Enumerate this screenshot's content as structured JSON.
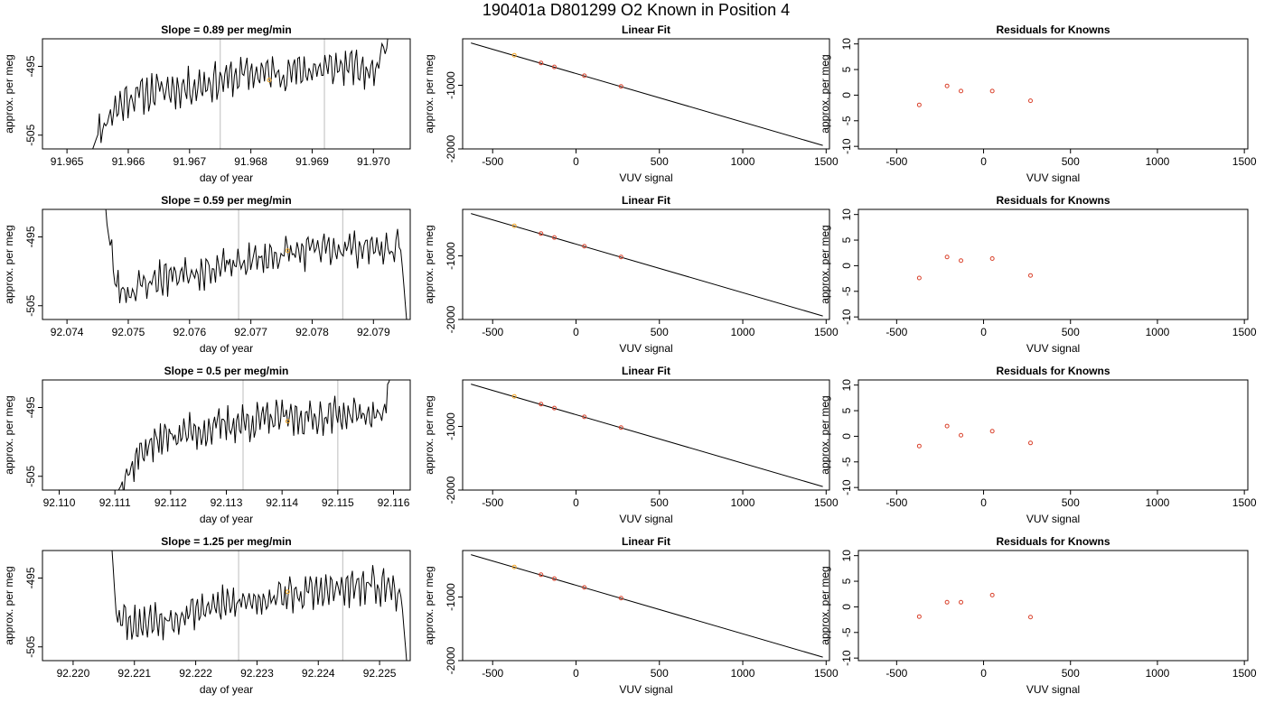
{
  "title": "190401a     D801299   O2 Known in Position  4",
  "colors": {
    "trace": "#000000",
    "marker": "#f5a623",
    "residual": "#d9412b",
    "vline": "#c8c8c8",
    "fitline": "#000000"
  },
  "chart_data": [
    {
      "type": "line",
      "row": 0,
      "col": 0,
      "title": "Slope =  0.89  per meg/min",
      "xlabel": "day of year",
      "ylabel": "approx. per meg",
      "xlim": [
        91.9646,
        91.9706
      ],
      "ylim": [
        -507,
        -491
      ],
      "xticks": [
        "91.965",
        "91.966",
        "91.967",
        "91.968",
        "91.969",
        "91.970"
      ],
      "yticks": [
        "-505",
        "-495"
      ],
      "vlines": [
        91.9675,
        91.9692
      ],
      "marker": {
        "x": 91.9683,
        "y": -497
      },
      "trace_seed": 11,
      "trace_points": [
        [
          91.9654,
          -507.5
        ],
        [
          91.9655,
          -505
        ],
        [
          91.9657,
          -502
        ],
        [
          91.966,
          -499.5
        ],
        [
          91.9665,
          -498.5
        ],
        [
          91.967,
          -498
        ],
        [
          91.9675,
          -497
        ],
        [
          91.968,
          -496
        ],
        [
          91.9685,
          -496
        ],
        [
          91.969,
          -495.5
        ],
        [
          91.9696,
          -495
        ],
        [
          91.97,
          -496
        ],
        [
          91.97025,
          -490
        ],
        [
          91.97032,
          -486
        ]
      ]
    },
    {
      "type": "scatter",
      "row": 0,
      "col": 1,
      "title": "Linear Fit",
      "xlabel": "VUV signal",
      "ylabel": "approx. per meg",
      "xlim": [
        -680,
        1520
      ],
      "ylim": [
        -2000,
        -270
      ],
      "xticks": [
        "-500",
        "0",
        "500",
        "1000",
        "1500"
      ],
      "yticks": [
        "-1000",
        "-2000"
      ],
      "fit_line": [
        [
          -630,
          -335
        ],
        [
          1480,
          -1945
        ]
      ],
      "points": [
        [
          -370,
          -528
        ],
        [
          -210,
          -650
        ],
        [
          -130,
          -712
        ],
        [
          50,
          -850
        ],
        [
          270,
          -1018
        ]
      ],
      "highlight_index": 0
    },
    {
      "type": "scatter",
      "row": 0,
      "col": 2,
      "title": "Residuals for Knowns",
      "xlabel": "VUV signal",
      "ylabel": "approx. per meg",
      "xlim": [
        -720,
        1520
      ],
      "ylim": [
        -10.5,
        11
      ],
      "xticks": [
        "-500",
        "0",
        "500",
        "1000",
        "1500"
      ],
      "yticks": [
        "-10",
        "-5",
        "0",
        "5",
        "10"
      ],
      "points": [
        [
          -370,
          -1.9
        ],
        [
          -210,
          1.8
        ],
        [
          -130,
          0.8
        ],
        [
          50,
          0.8
        ],
        [
          270,
          -1.1
        ]
      ]
    },
    {
      "type": "line",
      "row": 1,
      "col": 0,
      "title": "Slope =  0.59  per meg/min",
      "xlabel": "day of year",
      "ylabel": "approx. per meg",
      "xlim": [
        92.0736,
        92.0796
      ],
      "ylim": [
        -507,
        -491
      ],
      "xticks": [
        "92.074",
        "92.075",
        "92.076",
        "92.077",
        "92.078",
        "92.079"
      ],
      "yticks": [
        "-505",
        "-495"
      ],
      "vlines": [
        92.0768,
        92.0785
      ],
      "marker": {
        "x": 92.0776,
        "y": -497
      },
      "trace_seed": 23,
      "trace_points": [
        [
          92.0746,
          -487
        ],
        [
          92.07465,
          -493
        ],
        [
          92.0748,
          -502
        ],
        [
          92.075,
          -503
        ],
        [
          92.0755,
          -501
        ],
        [
          92.076,
          -500
        ],
        [
          92.0765,
          -499.5
        ],
        [
          92.077,
          -498.5
        ],
        [
          92.0775,
          -497.5
        ],
        [
          92.078,
          -497
        ],
        [
          92.0785,
          -496.5
        ],
        [
          92.079,
          -496.5
        ],
        [
          92.07945,
          -497
        ],
        [
          92.07955,
          -508
        ]
      ]
    },
    {
      "type": "scatter",
      "row": 1,
      "col": 1,
      "title": "Linear Fit",
      "xlabel": "VUV signal",
      "ylabel": "approx. per meg",
      "xlim": [
        -680,
        1520
      ],
      "ylim": [
        -2000,
        -270
      ],
      "xticks": [
        "-500",
        "0",
        "500",
        "1000",
        "1500"
      ],
      "yticks": [
        "-1000",
        "-2000"
      ],
      "fit_line": [
        [
          -630,
          -335
        ],
        [
          1480,
          -1945
        ]
      ],
      "points": [
        [
          -370,
          -528
        ],
        [
          -210,
          -650
        ],
        [
          -130,
          -712
        ],
        [
          50,
          -850
        ],
        [
          270,
          -1018
        ]
      ],
      "highlight_index": 0
    },
    {
      "type": "scatter",
      "row": 1,
      "col": 2,
      "title": "Residuals for Knowns",
      "xlabel": "VUV signal",
      "ylabel": "approx. per meg",
      "xlim": [
        -720,
        1520
      ],
      "ylim": [
        -10.5,
        11
      ],
      "xticks": [
        "-500",
        "0",
        "500",
        "1000",
        "1500"
      ],
      "yticks": [
        "-10",
        "-5",
        "0",
        "5",
        "10"
      ],
      "points": [
        [
          -370,
          -2.4
        ],
        [
          -210,
          1.7
        ],
        [
          -130,
          1.0
        ],
        [
          50,
          1.4
        ],
        [
          270,
          -1.9
        ]
      ]
    },
    {
      "type": "line",
      "row": 2,
      "col": 0,
      "title": "Slope =  0.5  per meg/min",
      "xlabel": "day of year",
      "ylabel": "approx. per meg",
      "xlim": [
        92.1097,
        92.1163
      ],
      "ylim": [
        -507,
        -491
      ],
      "xticks": [
        "92.110",
        "92.111",
        "92.112",
        "92.113",
        "92.114",
        "92.115",
        "92.116"
      ],
      "yticks": [
        "-505",
        "-495"
      ],
      "vlines": [
        92.1133,
        92.115
      ],
      "marker": {
        "x": 92.1141,
        "y": -497
      },
      "trace_seed": 37,
      "trace_points": [
        [
          92.111,
          -508
        ],
        [
          92.1112,
          -505
        ],
        [
          92.1115,
          -501
        ],
        [
          92.112,
          -499
        ],
        [
          92.1125,
          -498.5
        ],
        [
          92.113,
          -497.5
        ],
        [
          92.1135,
          -497
        ],
        [
          92.114,
          -496.5
        ],
        [
          92.1145,
          -496.5
        ],
        [
          92.115,
          -496
        ],
        [
          92.1155,
          -496
        ],
        [
          92.1158,
          -496.5
        ],
        [
          92.11595,
          -490
        ],
        [
          92.116,
          -488
        ]
      ]
    },
    {
      "type": "scatter",
      "row": 2,
      "col": 1,
      "title": "Linear Fit",
      "xlabel": "VUV signal",
      "ylabel": "approx. per meg",
      "xlim": [
        -680,
        1520
      ],
      "ylim": [
        -2000,
        -270
      ],
      "xticks": [
        "-500",
        "0",
        "500",
        "1000",
        "1500"
      ],
      "yticks": [
        "-1000",
        "-2000"
      ],
      "fit_line": [
        [
          -630,
          -335
        ],
        [
          1480,
          -1945
        ]
      ],
      "points": [
        [
          -370,
          -528
        ],
        [
          -210,
          -650
        ],
        [
          -130,
          -712
        ],
        [
          50,
          -850
        ],
        [
          270,
          -1018
        ]
      ],
      "highlight_index": 0
    },
    {
      "type": "scatter",
      "row": 2,
      "col": 2,
      "title": "Residuals for Knowns",
      "xlabel": "VUV signal",
      "ylabel": "approx. per meg",
      "xlim": [
        -720,
        1520
      ],
      "ylim": [
        -10.5,
        11
      ],
      "xticks": [
        "-500",
        "0",
        "500",
        "1000",
        "1500"
      ],
      "yticks": [
        "-10",
        "-5",
        "0",
        "5",
        "10"
      ],
      "points": [
        [
          -370,
          -1.9
        ],
        [
          -210,
          2.0
        ],
        [
          -130,
          0.2
        ],
        [
          50,
          1.0
        ],
        [
          270,
          -1.3
        ]
      ]
    },
    {
      "type": "line",
      "row": 3,
      "col": 0,
      "title": "Slope =  1.25  per meg/min",
      "xlabel": "day of year",
      "ylabel": "approx. per meg",
      "xlim": [
        92.2195,
        92.2255
      ],
      "ylim": [
        -507,
        -491
      ],
      "xticks": [
        "92.220",
        "92.221",
        "92.222",
        "92.223",
        "92.224",
        "92.225"
      ],
      "yticks": [
        "-505",
        "-495"
      ],
      "vlines": [
        92.2227,
        92.2244
      ],
      "marker": {
        "x": 92.2235,
        "y": -497
      },
      "trace_seed": 53,
      "trace_points": [
        [
          92.2206,
          -486
        ],
        [
          92.22065,
          -493
        ],
        [
          92.2207,
          -500
        ],
        [
          92.221,
          -501.5
        ],
        [
          92.2215,
          -501
        ],
        [
          92.222,
          -499.5
        ],
        [
          92.2225,
          -499
        ],
        [
          92.223,
          -498
        ],
        [
          92.2235,
          -497.5
        ],
        [
          92.224,
          -497
        ],
        [
          92.2245,
          -496.5
        ],
        [
          92.225,
          -496
        ],
        [
          92.22535,
          -497
        ],
        [
          92.22545,
          -508
        ]
      ]
    },
    {
      "type": "scatter",
      "row": 3,
      "col": 1,
      "title": "Linear Fit",
      "xlabel": "VUV signal",
      "ylabel": "approx. per meg",
      "xlim": [
        -680,
        1520
      ],
      "ylim": [
        -2000,
        -270
      ],
      "xticks": [
        "-500",
        "0",
        "500",
        "1000",
        "1500"
      ],
      "yticks": [
        "-1000",
        "-2000"
      ],
      "fit_line": [
        [
          -630,
          -335
        ],
        [
          1480,
          -1945
        ]
      ],
      "points": [
        [
          -370,
          -528
        ],
        [
          -210,
          -650
        ],
        [
          -130,
          -712
        ],
        [
          50,
          -850
        ],
        [
          270,
          -1018
        ]
      ],
      "highlight_index": 0
    },
    {
      "type": "scatter",
      "row": 3,
      "col": 2,
      "title": "Residuals for Knowns",
      "xlabel": "VUV signal",
      "ylabel": "approx. per meg",
      "xlim": [
        -720,
        1520
      ],
      "ylim": [
        -10.5,
        11
      ],
      "xticks": [
        "-500",
        "0",
        "500",
        "1000",
        "1500"
      ],
      "yticks": [
        "-10",
        "-5",
        "0",
        "5",
        "10"
      ],
      "points": [
        [
          -370,
          -1.9
        ],
        [
          -210,
          0.9
        ],
        [
          -130,
          0.9
        ],
        [
          50,
          2.3
        ],
        [
          270,
          -2.0
        ]
      ]
    }
  ]
}
